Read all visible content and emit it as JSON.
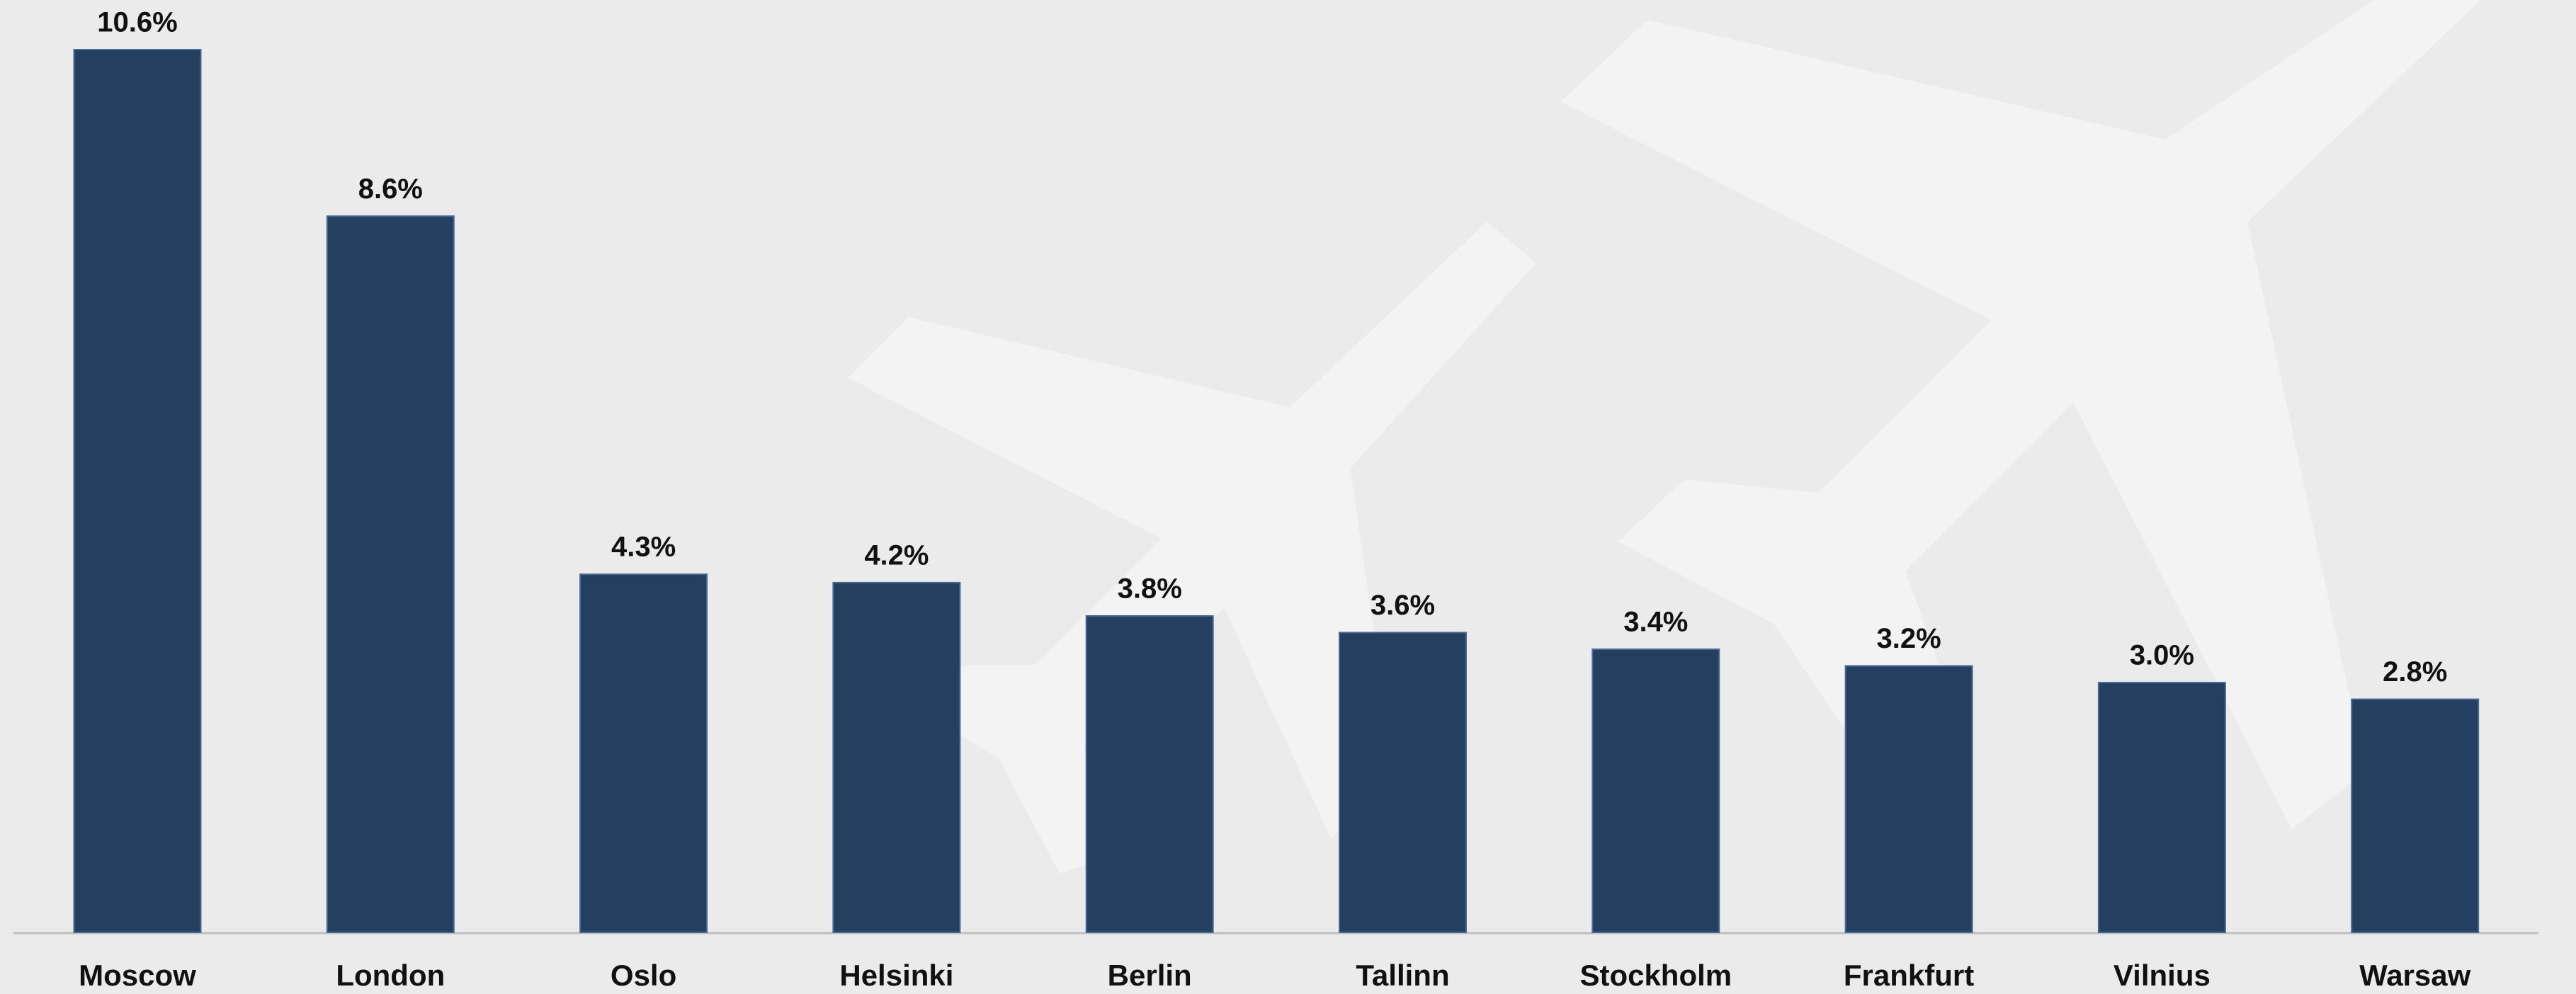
{
  "chart_data": {
    "type": "bar",
    "categories": [
      "Moscow",
      "London",
      "Oslo",
      "Helsinki",
      "Berlin",
      "Tallinn",
      "Stockholm",
      "Frankfurt",
      "Vilnius",
      "Warsaw"
    ],
    "values": [
      10.6,
      8.6,
      4.3,
      4.2,
      3.8,
      3.6,
      3.4,
      3.2,
      3.0,
      2.8
    ],
    "value_labels": [
      "10.6%",
      "8.6%",
      "4.3%",
      "4.2%",
      "3.8%",
      "3.6%",
      "3.4%",
      "3.2%",
      "3.0%",
      "2.8%"
    ],
    "color": "#253f60"
  }
}
